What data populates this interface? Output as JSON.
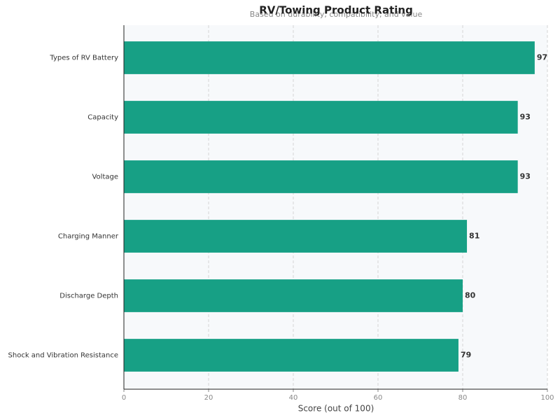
{
  "chart_data": {
    "type": "barh",
    "title": "RV/Towing Product Rating",
    "subtitle": "Based on durability, compatibility, and value",
    "xlabel": "Score (out of 100)",
    "categories": [
      "Types of RV Battery",
      "Capacity",
      "Voltage",
      "Charging Manner",
      "Discharge Depth",
      "Shock and Vibration Resistance"
    ],
    "values": [
      97,
      93,
      93,
      81,
      80,
      79
    ],
    "color": "#17a085",
    "xlim": [
      0,
      100
    ],
    "xticks": [
      0,
      20,
      40,
      60,
      80,
      100
    ],
    "grid": true
  }
}
